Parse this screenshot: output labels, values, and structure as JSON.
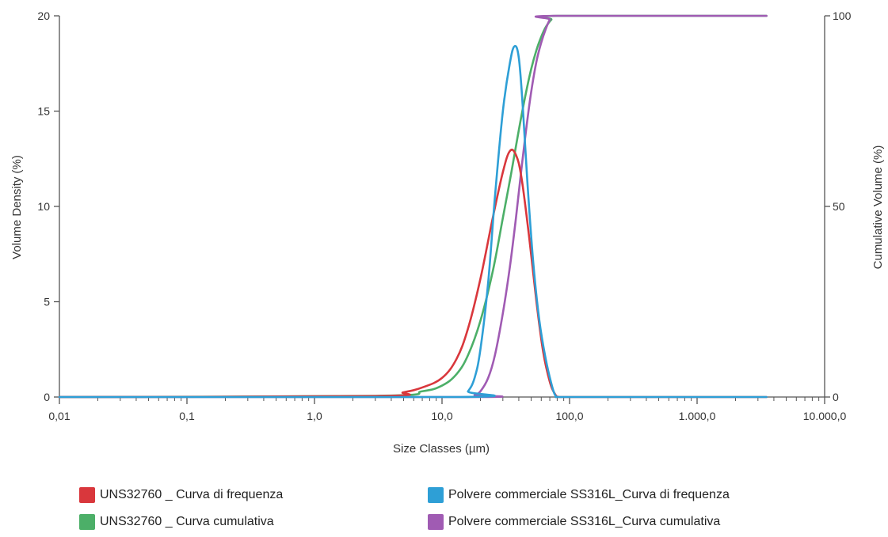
{
  "chart_data": {
    "type": "line",
    "xlabel": "Size Classes (µm)",
    "ylabel": "Volume Density (%)",
    "y2label": "Cumulative Volume (%)",
    "x_scale": "log",
    "xlim": [
      0.01,
      10000
    ],
    "ylim": [
      0,
      20
    ],
    "y2lim": [
      0,
      100
    ],
    "x_ticks": [
      0.01,
      0.1,
      1,
      10,
      100,
      1000,
      10000
    ],
    "x_tick_labels": [
      "0,01",
      "0,1",
      "1,0",
      "10,0",
      "100,0",
      "1.000,0",
      "10.000,0"
    ],
    "y_ticks": [
      0,
      5,
      10,
      15,
      20
    ],
    "y_tick_labels": [
      "0",
      "5",
      "10",
      "15",
      "20"
    ],
    "y2_ticks": [
      0,
      50,
      100
    ],
    "y2_tick_labels": [
      "0",
      "50",
      "100"
    ],
    "grid": false,
    "legend_position": "bottom",
    "series": [
      {
        "name": "UNS32760 _ Curva di frequenza",
        "axis": "left",
        "color": "#d9373c",
        "x": [
          0.01,
          3,
          5,
          7,
          10,
          13,
          16,
          20,
          25,
          30,
          34,
          38,
          42,
          48,
          55,
          62,
          70,
          77,
          83,
          100,
          1000,
          3500
        ],
        "y": [
          0,
          0.05,
          0.25,
          0.5,
          1.0,
          2.0,
          3.6,
          6.2,
          9.4,
          11.8,
          12.9,
          12.7,
          11.5,
          8.5,
          5.0,
          2.4,
          0.8,
          0.15,
          0,
          0,
          0,
          0
        ]
      },
      {
        "name": "UNS32760 _ Curva cumulativa",
        "axis": "right",
        "color": "#4caf68",
        "x": [
          0.01,
          3,
          7,
          10,
          13,
          16,
          20,
          25,
          30,
          35,
          40,
          45,
          50,
          55,
          60,
          65,
          72,
          80,
          3500
        ],
        "y": [
          0,
          0.3,
          1.5,
          3,
          6,
          11,
          20,
          33,
          47,
          59,
          70,
          79,
          86,
          91,
          94.5,
          97,
          99,
          100,
          100
        ]
      },
      {
        "name": "Polvere commerciale SS316L_Curva di frequenza",
        "axis": "left",
        "color": "#2e9fd6",
        "x": [
          0.01,
          14,
          16,
          18,
          20,
          23,
          26,
          30,
          34,
          37,
          40,
          43,
          47,
          52,
          58,
          65,
          72,
          77,
          82,
          100,
          1000,
          3500
        ],
        "y": [
          0,
          0,
          0.3,
          1.0,
          2.5,
          6.0,
          10.5,
          15.0,
          17.5,
          18.4,
          17.8,
          15.2,
          11.0,
          7.0,
          4.0,
          2.0,
          0.7,
          0.1,
          0,
          0,
          0,
          0
        ]
      },
      {
        "name": "Polvere commerciale SS316L_Curva cumulativa",
        "axis": "right",
        "color": "#a05bb3",
        "x": [
          0.01,
          16,
          18,
          20,
          23,
          26,
          30,
          34,
          38,
          42,
          46,
          50,
          55,
          60,
          65,
          70,
          75,
          3500
        ],
        "y": [
          0,
          0,
          0.5,
          1.5,
          5,
          11,
          22,
          34,
          47,
          60,
          71,
          80,
          88,
          93,
          96.5,
          99,
          100,
          100
        ]
      }
    ]
  }
}
